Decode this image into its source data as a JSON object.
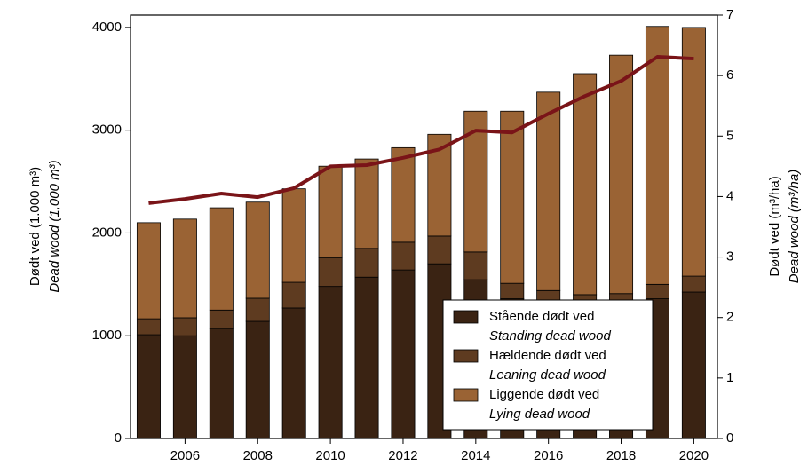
{
  "chart_data": {
    "type": "bar",
    "stacked": true,
    "x": [
      2005,
      2006,
      2007,
      2008,
      2009,
      2010,
      2011,
      2012,
      2013,
      2014,
      2015,
      2016,
      2017,
      2018,
      2019,
      2020
    ],
    "xlim": [
      2004.5,
      2020.65
    ],
    "xticks": [
      2006,
      2008,
      2010,
      2012,
      2014,
      2016,
      2018,
      2020
    ],
    "ylim": [
      0,
      4120
    ],
    "yticks": [
      0,
      1000,
      2000,
      3000,
      4000
    ],
    "y2lim": [
      0,
      7
    ],
    "y2ticks": [
      0,
      1,
      2,
      3,
      4,
      5,
      6,
      7
    ],
    "y_label": "Dødt ved (1.000 m³)",
    "y_label_en": "Dead wood (1,000 m³)",
    "y2_label": "Dødt ved (m³/ha)",
    "y2_label_en": "Dead wood (m³/ha)",
    "grid": false,
    "legend": "lower right",
    "series": [
      {
        "name": "Stående dødt ved",
        "name_en": "Standing dead wood",
        "color": "#3a2313",
        "type": "bar",
        "values": [
          1010,
          1000,
          1070,
          1140,
          1270,
          1480,
          1570,
          1640,
          1700,
          1545,
          1360,
          1290,
          1260,
          1270,
          1360,
          1425
        ]
      },
      {
        "name": "Hældende dødt ved",
        "name_en": "Leaning dead wood",
        "color": "#5e3b20",
        "type": "bar",
        "values": [
          155,
          175,
          180,
          225,
          250,
          280,
          280,
          270,
          270,
          270,
          150,
          150,
          140,
          140,
          140,
          155
        ]
      },
      {
        "name": "Liggende dødt ved",
        "name_en": "Lying dead wood",
        "color": "#9a6334",
        "type": "bar",
        "values": [
          935,
          960,
          995,
          935,
          910,
          890,
          870,
          920,
          990,
          1370,
          1675,
          1930,
          2150,
          2320,
          2510,
          2420
        ]
      },
      {
        "type": "line",
        "axis": "y2",
        "color": "#7a1418",
        "values": [
          3.89,
          3.96,
          4.05,
          3.99,
          4.14,
          4.5,
          4.52,
          4.64,
          4.78,
          5.09,
          5.06,
          5.37,
          5.66,
          5.91,
          6.31,
          6.28
        ]
      }
    ]
  }
}
